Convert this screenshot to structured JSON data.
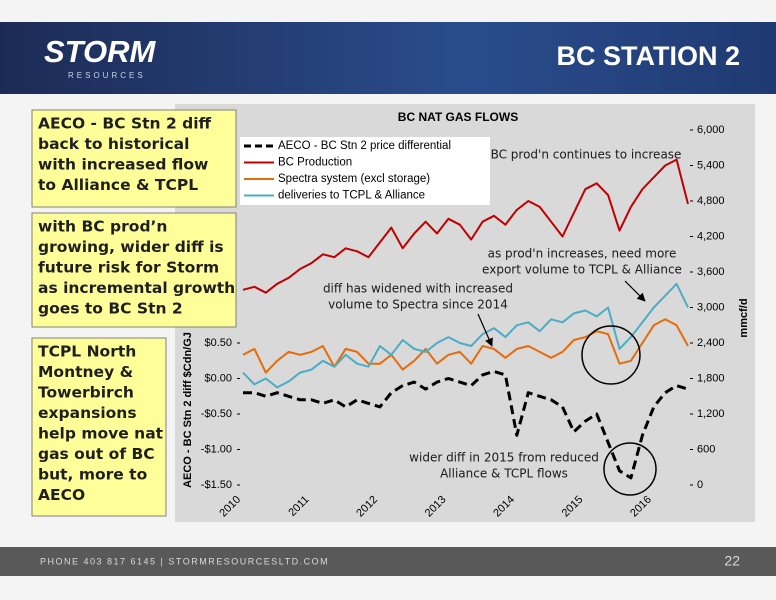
{
  "header": {
    "logo": "STORM",
    "logo_sub": "RESOURCES",
    "title": "BC STATION 2"
  },
  "callouts": [
    {
      "lines": [
        "AECO - BC Stn 2 diff",
        "back to historical",
        "with increased flow",
        "to Alliance & TCPL"
      ]
    },
    {
      "lines": [
        "with BC prod’n",
        "growing, wider diff is",
        "future risk for Storm",
        "as incremental growth",
        "goes to BC Stn 2"
      ]
    },
    {
      "lines": [
        "TCPL North",
        "Montney &",
        "Towerbirch",
        "expansions",
        "help move nat",
        "gas out of BC",
        "but, more to",
        "AECO"
      ]
    }
  ],
  "footer": {
    "contact": "PHONE 403 817 6145  |  STORMRESOURCESLTD.COM",
    "page": "22"
  },
  "chart_data": {
    "type": "line",
    "title": "BC NAT GAS FLOWS",
    "y_label": "AECO - BC Stn 2 diff $Cdn/GJ",
    "y2_label": "mmcf/d",
    "legend": "upper left",
    "grid": false,
    "categories": [
      "2010",
      null,
      null,
      null,
      null,
      null,
      "2011",
      null,
      null,
      null,
      null,
      null,
      "2012",
      null,
      null,
      null,
      null,
      null,
      "2013",
      null,
      null,
      null,
      null,
      null,
      "2014",
      null,
      null,
      null,
      null,
      null,
      "2015",
      null,
      null,
      null,
      null,
      null,
      "2016",
      null,
      null,
      null
    ],
    "ylim": [
      -1.5,
      3.5
    ],
    "yticks": [
      {
        "value": -1.5,
        "label": "-$1.50"
      },
      {
        "value": -1,
        "label": "-$1.00"
      },
      {
        "value": -0.5,
        "label": "-$0.50"
      },
      {
        "value": 0,
        "label": "$0.00"
      },
      {
        "value": 0.5,
        "label": "$0.50"
      }
    ],
    "y2lim": [
      0,
      6000
    ],
    "y2ticks": [
      0,
      600,
      {
        "value": 1200,
        "label": "1,200"
      },
      {
        "value": 1800,
        "label": "1,800"
      },
      {
        "value": 2400,
        "label": "2,400"
      },
      {
        "value": 3000,
        "label": "3,000"
      },
      {
        "value": 3600,
        "label": "3,600"
      },
      {
        "value": 4200,
        "label": "4,200"
      },
      {
        "value": 4800,
        "label": "4,800"
      },
      {
        "value": 5400,
        "label": "5,400"
      },
      {
        "value": 6000,
        "label": "6,000"
      }
    ],
    "series": [
      {
        "name": "AECO - BC Stn 2 price differential",
        "color": "#000000",
        "style": "dashed",
        "values": [
          -0.2,
          -0.2,
          -0.25,
          -0.2,
          -0.25,
          -0.3,
          -0.3,
          -0.35,
          -0.3,
          -0.4,
          -0.3,
          -0.35,
          -0.4,
          -0.2,
          -0.1,
          -0.05,
          -0.15,
          -0.05,
          0.0,
          -0.05,
          -0.1,
          0.05,
          0.1,
          0.05,
          -0.8,
          -0.2,
          -0.25,
          -0.3,
          -0.4,
          -0.75,
          -0.6,
          -0.5,
          -0.9,
          -1.3,
          -1.4,
          -0.8,
          -0.4,
          -0.2,
          -0.1,
          -0.15
        ]
      },
      {
        "name": "BC Production",
        "color": "#c00000",
        "style": "solid",
        "axis": "y2",
        "values": [
          3300,
          3350,
          3250,
          3400,
          3500,
          3650,
          3750,
          3900,
          3850,
          4000,
          3950,
          3850,
          4100,
          4350,
          4000,
          4250,
          4450,
          4250,
          4500,
          4400,
          4150,
          4450,
          4550,
          4400,
          4650,
          4800,
          4700,
          4450,
          4200,
          4600,
          5000,
          5100,
          4900,
          4300,
          4700,
          5000,
          5200,
          5400,
          5500,
          4750
        ]
      },
      {
        "name": "Spectra system (excl storage)",
        "color": "#e46c0a",
        "style": "solid",
        "axis": "y2",
        "values": [
          2200,
          2300,
          1900,
          2100,
          2250,
          2200,
          2250,
          2350,
          2000,
          2300,
          2250,
          2050,
          2050,
          2200,
          1950,
          2100,
          2300,
          2050,
          2200,
          2250,
          2050,
          2350,
          2300,
          2150,
          2300,
          2350,
          2250,
          2150,
          2250,
          2450,
          2500,
          2600,
          2550,
          2050,
          2100,
          2400,
          2700,
          2800,
          2700,
          2350
        ]
      },
      {
        "name": "deliveries to TCPL & Alliance",
        "color": "#4bacc6",
        "style": "solid",
        "axis": "y2",
        "values": [
          1900,
          1700,
          1800,
          1650,
          1750,
          1900,
          1950,
          2100,
          2000,
          2200,
          2050,
          2000,
          2350,
          2200,
          2450,
          2300,
          2250,
          2400,
          2500,
          2400,
          2350,
          2550,
          2650,
          2500,
          2700,
          2750,
          2600,
          2800,
          2750,
          2900,
          2950,
          2850,
          3000,
          2300,
          2500,
          2750,
          3000,
          3200,
          3400,
          3000
        ]
      }
    ],
    "annotations": [
      {
        "lines": [
          "BC prod'n continues to increase"
        ]
      },
      {
        "lines": [
          "as prod'n increases, need more",
          "export volume to TCPL & Alliance"
        ]
      },
      {
        "lines": [
          "diff has widened with increased",
          "volume to Spectra since 2014"
        ]
      },
      {
        "lines": [
          "wider diff in 2015 from reduced",
          "Alliance & TCPL flows"
        ]
      }
    ]
  }
}
